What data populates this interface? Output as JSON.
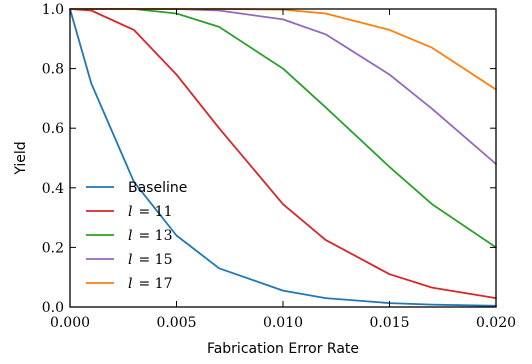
{
  "chart_data": {
    "type": "line",
    "xlabel": "Fabrication Error Rate",
    "ylabel": "Yield",
    "xlim": [
      0,
      0.02
    ],
    "ylim": [
      0,
      1
    ],
    "x_ticks": [
      0,
      0.005,
      0.01,
      0.015,
      0.02
    ],
    "x_tick_labels": [
      "0.000",
      "0.005",
      "0.010",
      "0.015",
      "0.020"
    ],
    "y_ticks": [
      0,
      0.2,
      0.4,
      0.6,
      0.8,
      1.0
    ],
    "y_tick_labels": [
      "0.0",
      "0.2",
      "0.4",
      "0.6",
      "0.8",
      "1.0"
    ],
    "grid": false,
    "legend_position": "bottom-left",
    "series": [
      {
        "name": "Baseline",
        "legend": {
          "prefix": "Baseline",
          "value": ""
        },
        "color": "#1f77b4",
        "x": [
          0,
          0.001,
          0.003,
          0.005,
          0.007,
          0.01,
          0.012,
          0.015,
          0.017,
          0.02
        ],
        "y": [
          1.0,
          0.75,
          0.42,
          0.24,
          0.13,
          0.055,
          0.03,
          0.013,
          0.008,
          0.004
        ]
      },
      {
        "name": "l = 11",
        "legend": {
          "prefix": "l",
          "value": "= 11"
        },
        "color": "#d62728",
        "x": [
          0,
          0.001,
          0.003,
          0.005,
          0.007,
          0.01,
          0.012,
          0.015,
          0.017,
          0.02
        ],
        "y": [
          1.0,
          0.995,
          0.93,
          0.78,
          0.6,
          0.345,
          0.225,
          0.11,
          0.065,
          0.03
        ]
      },
      {
        "name": "l = 13",
        "legend": {
          "prefix": "l",
          "value": "= 13"
        },
        "color": "#2ca02c",
        "x": [
          0,
          0.001,
          0.003,
          0.005,
          0.007,
          0.01,
          0.012,
          0.015,
          0.017,
          0.02
        ],
        "y": [
          1.0,
          1.0,
          1.0,
          0.985,
          0.94,
          0.8,
          0.67,
          0.47,
          0.345,
          0.2
        ]
      },
      {
        "name": "l = 15",
        "legend": {
          "prefix": "l",
          "value": "= 15"
        },
        "color": "#9467bd",
        "x": [
          0,
          0.001,
          0.003,
          0.005,
          0.007,
          0.01,
          0.012,
          0.015,
          0.017,
          0.02
        ],
        "y": [
          1.0,
          1.0,
          1.0,
          1.0,
          0.995,
          0.965,
          0.915,
          0.78,
          0.665,
          0.48
        ]
      },
      {
        "name": "l = 17",
        "legend": {
          "prefix": "l",
          "value": "= 17"
        },
        "color": "#ff7f0e",
        "x": [
          0,
          0.001,
          0.003,
          0.005,
          0.007,
          0.01,
          0.012,
          0.015,
          0.017,
          0.02
        ],
        "y": [
          1.0,
          1.0,
          1.0,
          1.0,
          1.0,
          0.998,
          0.985,
          0.93,
          0.87,
          0.73
        ]
      }
    ]
  }
}
